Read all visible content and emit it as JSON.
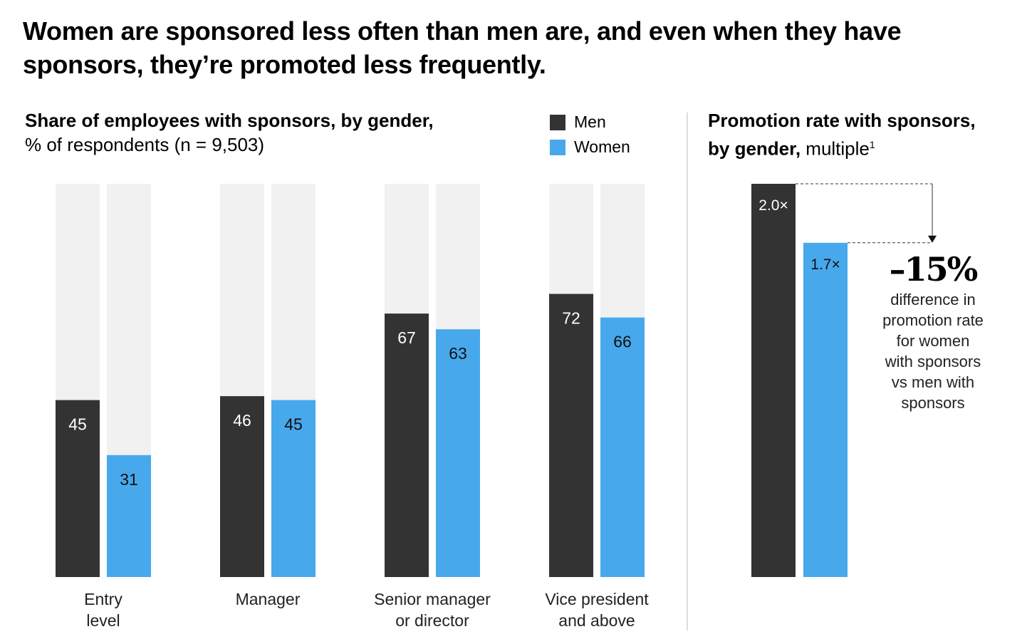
{
  "title": "Women are sponsored less often than men are, and even when they have sponsors, they’re promoted less frequently.",
  "colors": {
    "men": "#333333",
    "women": "#48a8ec",
    "track": "#f1f1f1"
  },
  "legend": {
    "men": "Men",
    "women": "Women"
  },
  "chart_data": [
    {
      "type": "bar",
      "title": "Share of employees with sponsors, by gender,",
      "subtitle": "% of respondents (n = 9,503)",
      "categories": [
        [
          "Entry",
          "level"
        ],
        [
          "Manager"
        ],
        [
          "Senior manager",
          "or director"
        ],
        [
          "Vice president",
          "and above"
        ]
      ],
      "series": [
        {
          "name": "Men",
          "values": [
            45,
            46,
            67,
            72
          ]
        },
        {
          "name": "Women",
          "values": [
            31,
            45,
            63,
            66
          ]
        }
      ],
      "ylim": [
        0,
        100
      ],
      "grid": false,
      "legend_position": "top-right"
    },
    {
      "type": "bar",
      "title": "Promotion rate with sponsors, by gender,",
      "subtitle": "multiple",
      "footnote_marker": "1",
      "series": [
        {
          "name": "Men",
          "values": [
            2.0
          ],
          "labels": [
            "2.0×"
          ]
        },
        {
          "name": "Women",
          "values": [
            1.7
          ],
          "labels": [
            "1.7×"
          ]
        }
      ],
      "ylim": [
        0,
        2.0
      ],
      "annotation": {
        "value": "–15%",
        "text": [
          "difference in",
          "promotion rate",
          "for women",
          "with sponsors",
          "vs men with",
          "sponsors"
        ]
      }
    }
  ]
}
